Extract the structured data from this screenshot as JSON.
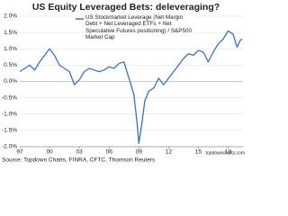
{
  "chart_data": {
    "type": "line",
    "title": "US Equity Leveraged Bets: deleveraging?",
    "source": "Source: Topdown Charts, FINRA, CFTC, Thomson Reuters",
    "watermark": "topdowncharts.com",
    "x": [
      1997,
      1997.5,
      1998,
      1998.5,
      1999,
      1999.5,
      2000,
      2000.5,
      2001,
      2001.5,
      2002,
      2002.5,
      2003,
      2003.5,
      2004,
      2004.5,
      2005,
      2005.5,
      2006,
      2006.5,
      2007,
      2007.5,
      2008,
      2008.5,
      2008.8,
      2009,
      2009.3,
      2009.6,
      2010,
      2010.5,
      2011,
      2011.5,
      2012,
      2012.5,
      2013,
      2013.5,
      2014,
      2014.5,
      2015,
      2015.5,
      2016,
      2016.5,
      2017,
      2017.5,
      2018,
      2018.5,
      2018.9,
      2019.2,
      2019.4
    ],
    "series": [
      {
        "name": "US Stockmarket Leverage (Net Margin Debt + Net Leveraged ETFs + Net Speculative Futures positioning) / S&P500 Market Cap",
        "color": "#3a6fc4",
        "values": [
          0.3,
          0.4,
          0.5,
          0.35,
          0.6,
          0.8,
          1.0,
          0.8,
          0.5,
          0.4,
          0.3,
          -0.1,
          0.05,
          0.3,
          0.4,
          0.35,
          0.3,
          0.35,
          0.45,
          0.4,
          0.55,
          0.6,
          0.1,
          -0.4,
          -1.2,
          -1.9,
          -1.3,
          -0.6,
          -0.3,
          -0.2,
          0.1,
          -0.1,
          0.1,
          0.3,
          0.5,
          0.7,
          0.85,
          0.8,
          0.95,
          0.9,
          0.6,
          0.9,
          1.15,
          1.3,
          1.55,
          1.45,
          1.05,
          1.25,
          1.3
        ]
      }
    ],
    "xlim": [
      1997,
      2019.5
    ],
    "xticks": [
      {
        "value": 1997,
        "label": "97"
      },
      {
        "value": 2000,
        "label": "00"
      },
      {
        "value": 2003,
        "label": "03"
      },
      {
        "value": 2006,
        "label": "06"
      },
      {
        "value": 2009,
        "label": "09"
      },
      {
        "value": 2012,
        "label": "12"
      },
      {
        "value": 2015,
        "label": "15"
      },
      {
        "value": 2018,
        "label": "18"
      }
    ],
    "ylim": [
      -2.0,
      2.0
    ],
    "yticks": [
      {
        "value": 2.0,
        "label": "2.0%"
      },
      {
        "value": 1.5,
        "label": "1.5%"
      },
      {
        "value": 1.0,
        "label": "1.0%"
      },
      {
        "value": 0.5,
        "label": "0.5%"
      },
      {
        "value": 0,
        "label": "0.0%"
      },
      {
        "value": -0.5,
        "label": "-0.5%"
      },
      {
        "value": -1.0,
        "label": "-1.0%"
      },
      {
        "value": -1.5,
        "label": "-1.5%"
      },
      {
        "value": -2.0,
        "label": "-2.0%"
      }
    ],
    "grid": true
  }
}
